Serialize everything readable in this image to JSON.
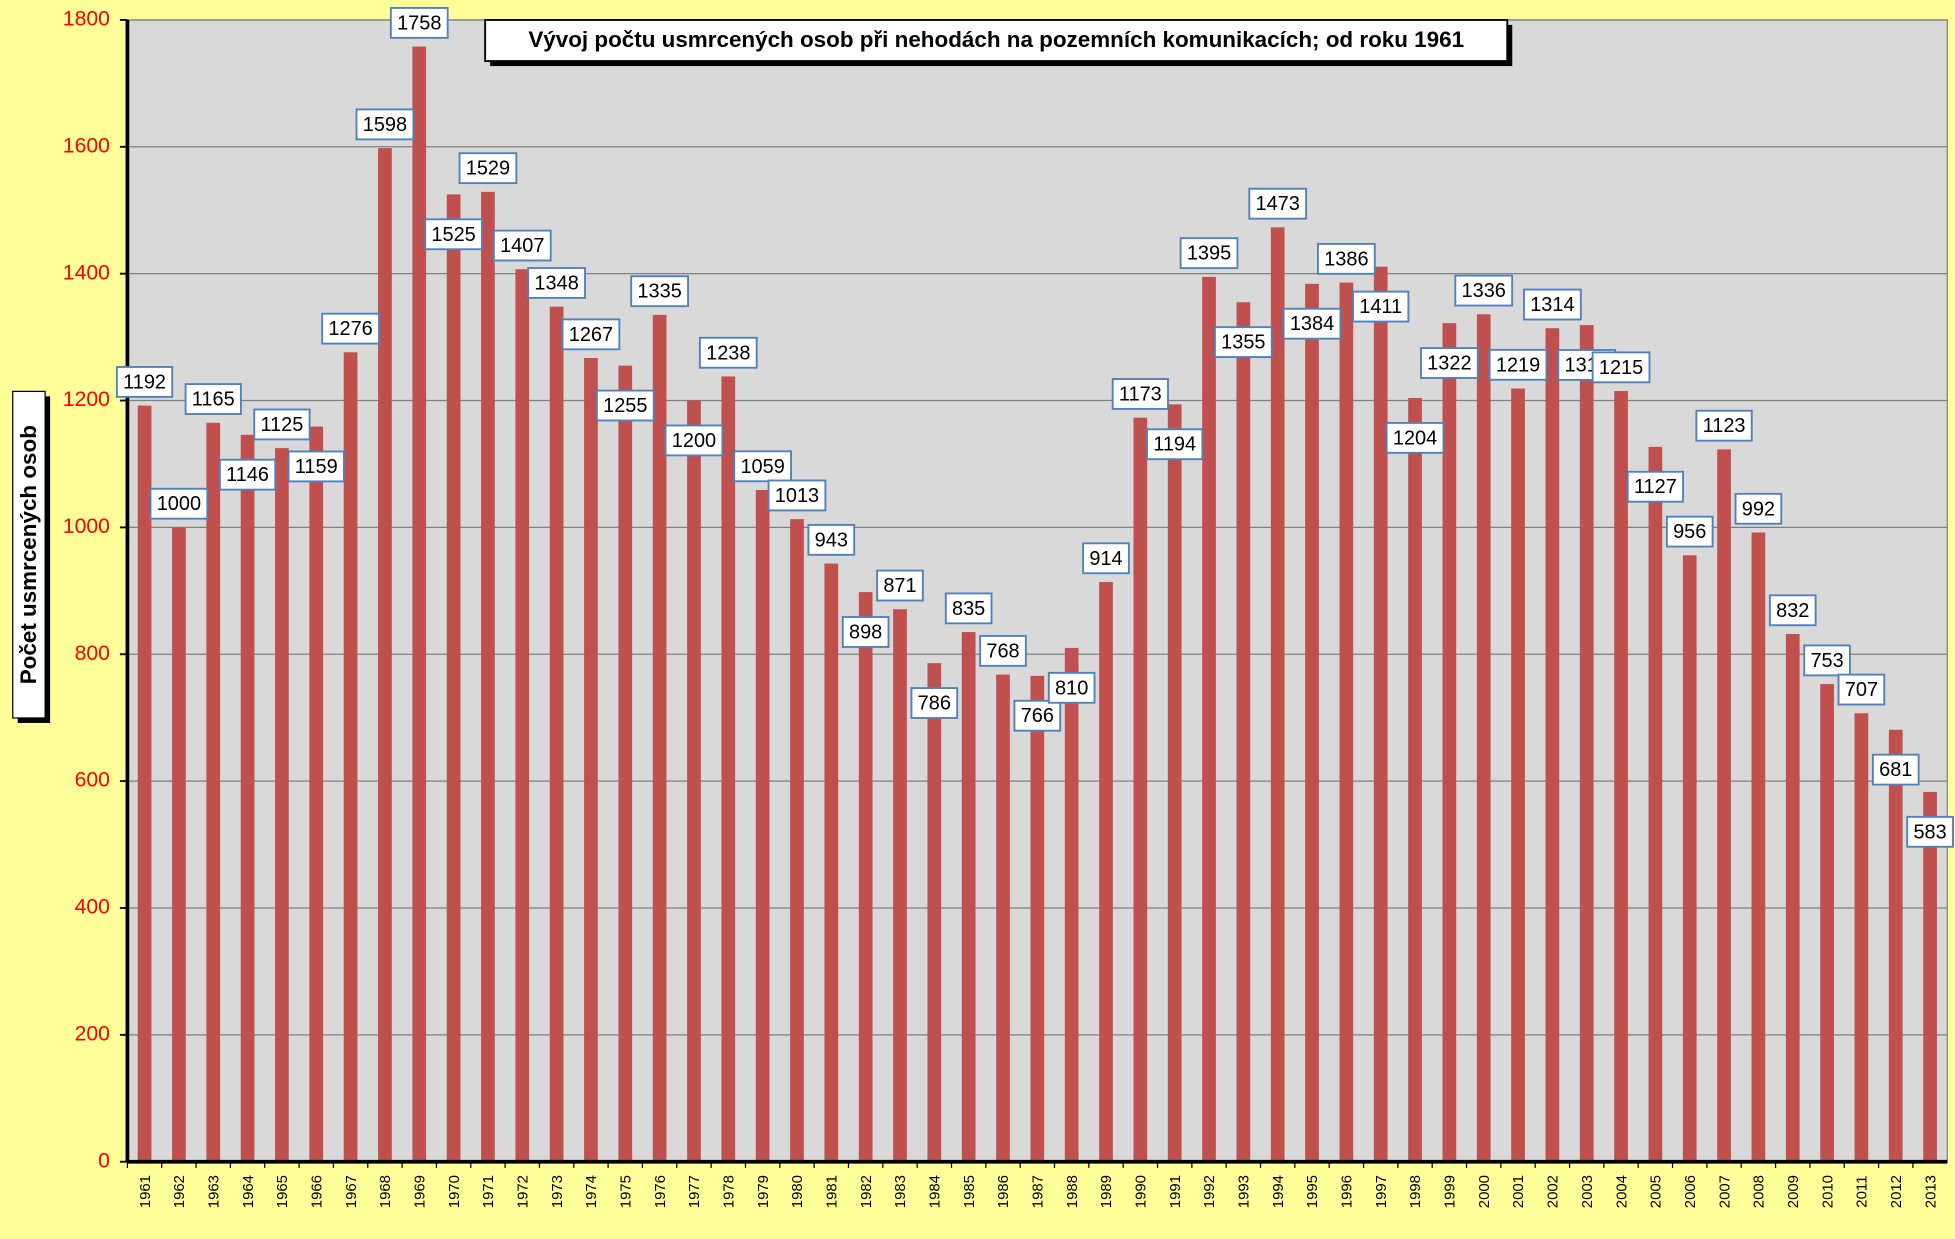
{
  "chart_data": {
    "type": "bar",
    "title": "Vývoj počtu usmrcených osob při nehodách na pozemních komunikacích; od roku 1961",
    "y_label": "Počet usmrcených osob",
    "categories": [
      "1961",
      "1962",
      "1963",
      "1964",
      "1965",
      "1966",
      "1967",
      "1968",
      "1969",
      "1970",
      "1971",
      "1972",
      "1973",
      "1974",
      "1975",
      "1976",
      "1977",
      "1978",
      "1979",
      "1980",
      "1981",
      "1982",
      "1983",
      "1984",
      "1985",
      "1986",
      "1987",
      "1988",
      "1989",
      "1990",
      "1991",
      "1992",
      "1993",
      "1994",
      "1995",
      "1996",
      "1997",
      "1998",
      "1999",
      "2000",
      "2001",
      "2002",
      "2003",
      "2004",
      "2005",
      "2006",
      "2007",
      "2008",
      "2009",
      "2010",
      "2011",
      "2012",
      "2013"
    ],
    "values": [
      1192,
      1000,
      1165,
      1146,
      1125,
      1159,
      1276,
      1598,
      1758,
      1525,
      1529,
      1407,
      1348,
      1267,
      1255,
      1335,
      1200,
      1238,
      1059,
      1013,
      943,
      898,
      871,
      786,
      835,
      768,
      766,
      810,
      914,
      1173,
      1194,
      1395,
      1355,
      1473,
      1384,
      1386,
      1411,
      1204,
      1322,
      1336,
      1219,
      1314,
      1319,
      1215,
      1127,
      956,
      1123,
      992,
      832,
      753,
      707,
      681,
      583
    ],
    "color": "#c0504d",
    "ylim": [
      0,
      1800
    ],
    "yticks": [
      0,
      200,
      400,
      600,
      800,
      1000,
      1200,
      1400,
      1600,
      1800
    ],
    "grid": true
  }
}
